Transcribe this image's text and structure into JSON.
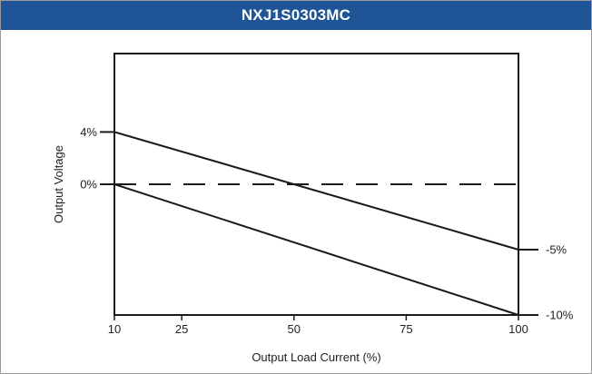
{
  "header": {
    "title": "NXJ1S0303MC"
  },
  "colors": {
    "header_bg": "#1f5596",
    "line": "#1a1a1a"
  },
  "chart_data": {
    "type": "line",
    "title": "NXJ1S0303MC",
    "xlabel": "Output Load Current (%)",
    "ylabel": "Output Voltage",
    "xlim": [
      10,
      100
    ],
    "ylim": [
      -10,
      10
    ],
    "x_ticks": [
      {
        "value": 10,
        "label": "10"
      },
      {
        "value": 25,
        "label": "25"
      },
      {
        "value": 50,
        "label": "50"
      },
      {
        "value": 75,
        "label": "75"
      },
      {
        "value": 100,
        "label": "100"
      }
    ],
    "y_ticks_left": [
      {
        "value": 4,
        "label": "4%"
      },
      {
        "value": 0,
        "label": "0%"
      }
    ],
    "y_ticks_right": [
      {
        "value": -5,
        "label": "-5%"
      },
      {
        "value": -10,
        "label": "-10%"
      }
    ],
    "series": [
      {
        "x": [
          10,
          100
        ],
        "y": [
          4,
          -5
        ],
        "style": "solid"
      },
      {
        "x": [
          10,
          100
        ],
        "y": [
          0,
          -10
        ],
        "style": "solid"
      },
      {
        "x": [
          10,
          100
        ],
        "y": [
          0,
          0
        ],
        "style": "dashed"
      }
    ],
    "grid": false,
    "legend": "none"
  }
}
